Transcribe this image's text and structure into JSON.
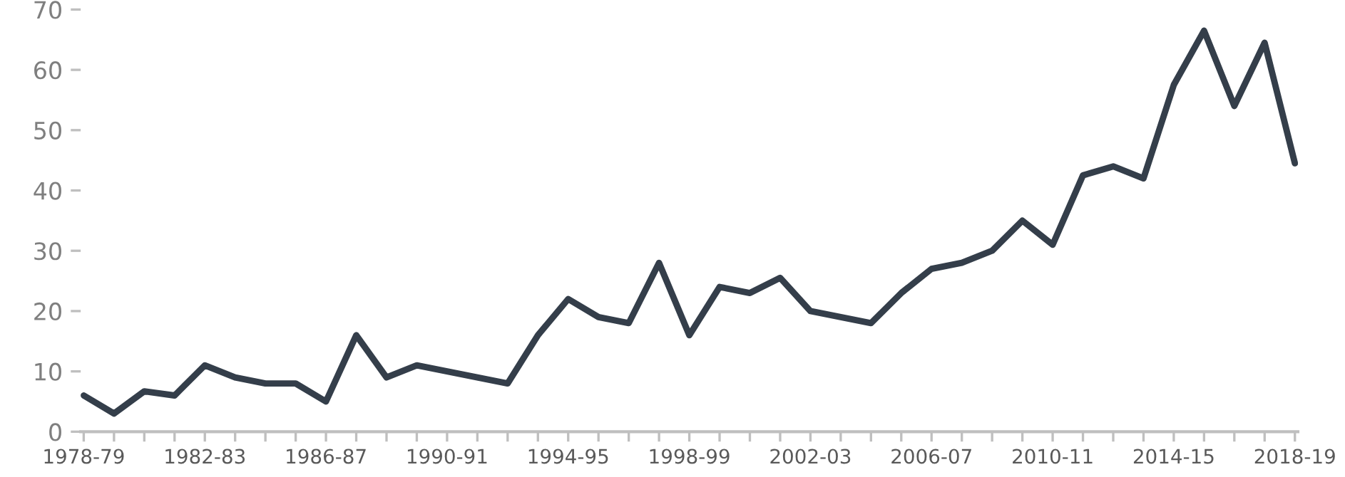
{
  "chart_data": {
    "type": "line",
    "categories": [
      "1978-79",
      null,
      null,
      null,
      "1982-83",
      null,
      null,
      null,
      "1986-87",
      null,
      null,
      null,
      "1990-91",
      null,
      null,
      null,
      "1994-95",
      null,
      null,
      null,
      "1998-99",
      null,
      null,
      null,
      "2002-03",
      null,
      null,
      null,
      "2006-07",
      null,
      null,
      null,
      "2010-11",
      null,
      null,
      null,
      "2014-15",
      null,
      null,
      null,
      "2018-19"
    ],
    "series": [
      {
        "color": "#343e4a",
        "values": [
          6,
          3,
          6.7,
          6,
          11,
          9,
          8,
          8,
          5,
          16,
          9,
          11,
          10,
          9,
          8,
          16,
          22,
          19,
          18,
          28,
          16,
          24,
          23,
          25.5,
          20,
          19,
          18,
          23,
          27,
          28,
          30,
          35,
          31,
          42.5,
          44,
          42,
          57.5,
          66.5,
          54,
          64.5,
          44.5
        ]
      }
    ],
    "ylim": [
      0,
      70
    ],
    "yticks": [
      0,
      10,
      20,
      30,
      40,
      50,
      60,
      70
    ],
    "grid": false,
    "legend": false,
    "marker": "none",
    "line_style": "solid"
  }
}
